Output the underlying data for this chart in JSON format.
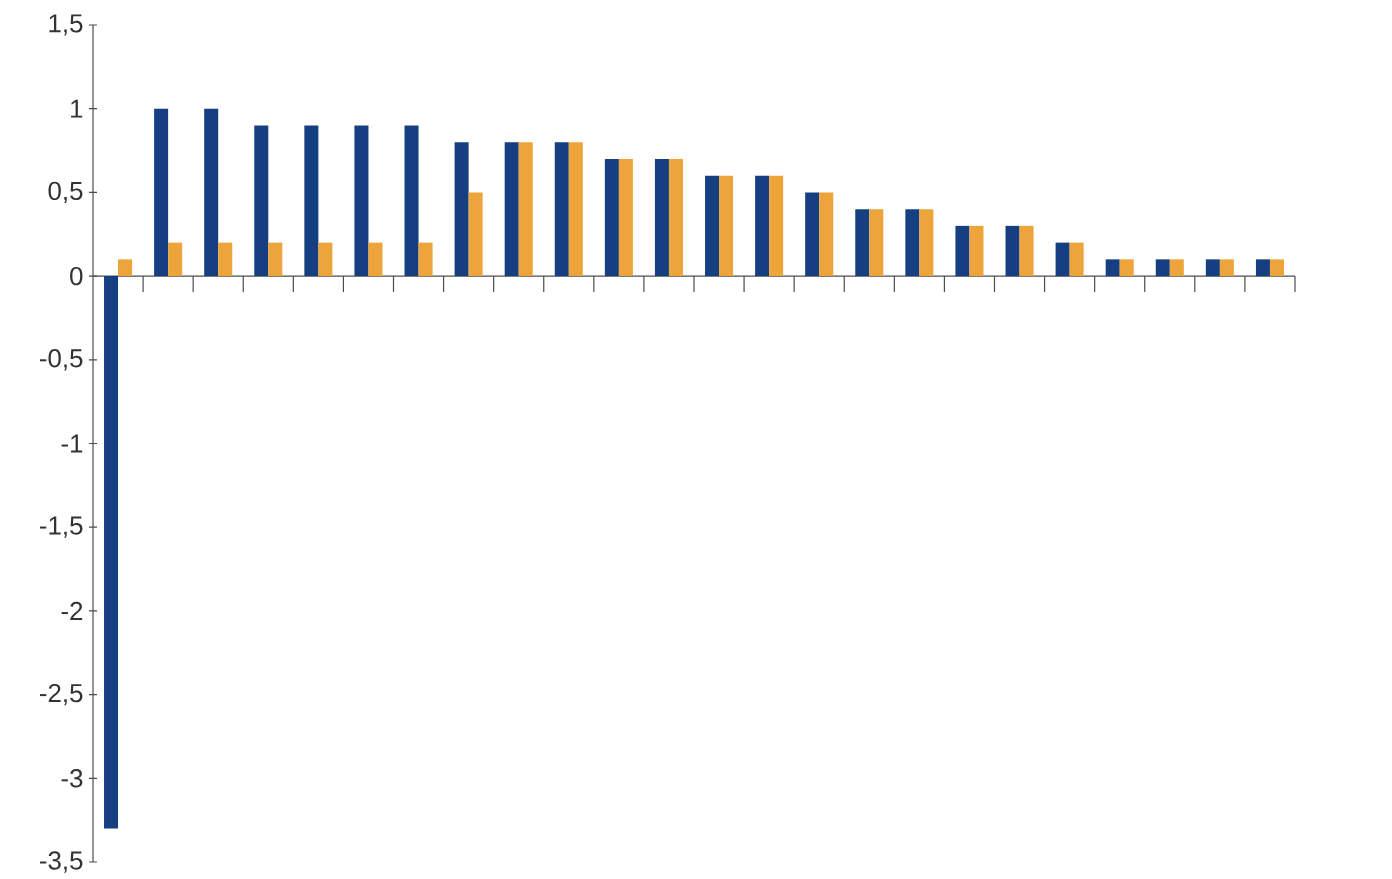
{
  "chart_data": {
    "type": "bar",
    "categories": [
      null,
      null,
      null,
      null,
      null,
      null,
      null,
      null,
      null,
      null,
      null,
      null,
      null,
      null,
      null,
      null,
      null,
      null,
      null,
      null,
      null,
      null,
      null,
      null
    ],
    "series": [
      {
        "color": "#163f82",
        "values": [
          -3.3,
          1,
          1,
          0.9,
          0.9,
          0.9,
          0.9,
          0.8,
          0.8,
          0.8,
          0.7,
          0.7,
          0.6,
          0.6,
          0.5,
          0.4,
          0.4,
          0.3,
          0.3,
          0.2,
          0.1,
          0.1,
          0.1,
          0.1
        ]
      },
      {
        "color": "#eda43a",
        "values": [
          0.1,
          0.2,
          0.2,
          0.2,
          0.2,
          0.2,
          0.2,
          0.5,
          0.8,
          0.8,
          0.7,
          0.7,
          0.6,
          0.6,
          0.5,
          0.4,
          0.4,
          0.3,
          0.3,
          0.2,
          0.1,
          0.1,
          0.1,
          0.1
        ]
      }
    ],
    "ylim": [
      -3.5,
      1.5
    ],
    "yticks": [
      {
        "value": -3.5,
        "label": "-3,5"
      },
      {
        "value": -3,
        "label": "-3"
      },
      {
        "value": -2.5,
        "label": "-2,5"
      },
      {
        "value": -2,
        "label": "-2"
      },
      {
        "value": -1.5,
        "label": "-1,5"
      },
      {
        "value": -1,
        "label": "-1"
      },
      {
        "value": -0.5,
        "label": "-0,5"
      },
      {
        "value": 0,
        "label": "0"
      },
      {
        "value": 0.5,
        "label": "0,5"
      },
      {
        "value": 1,
        "label": "1"
      },
      {
        "value": 1.5,
        "label": "1,5"
      }
    ],
    "tick_labels": "y"
  }
}
